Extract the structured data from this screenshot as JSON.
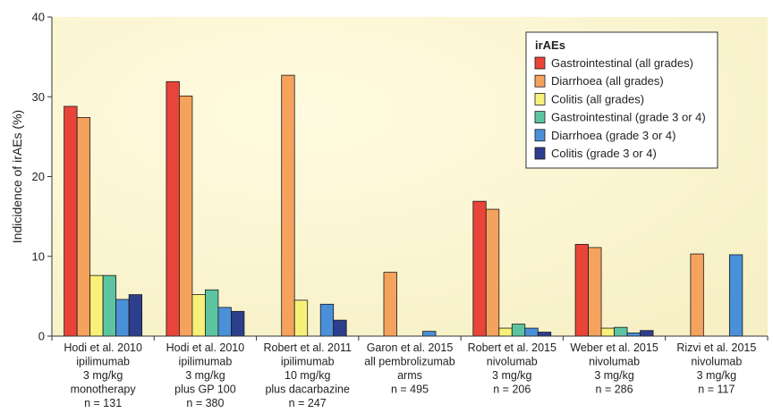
{
  "chart_data": {
    "type": "bar",
    "title": "",
    "xlabel": "",
    "ylabel": "Indicidence of irAEs (%)",
    "ylim": [
      0,
      40
    ],
    "yticks": [
      0,
      10,
      20,
      30,
      40
    ],
    "grid": false,
    "legend": {
      "title": "irAEs",
      "placement": "top-right"
    },
    "categories": [
      {
        "lines": [
          "Hodi et al. 2010",
          "ipilimumab",
          "3 mg/kg",
          "monotherapy",
          "n = 131"
        ]
      },
      {
        "lines": [
          "Hodi et al. 2010",
          "ipilimumab",
          "3 mg/kg",
          "plus GP 100",
          "n = 380"
        ]
      },
      {
        "lines": [
          "Robert et al. 2011",
          "ipilimumab",
          "10 mg/kg",
          "plus dacarbazine",
          "n = 247"
        ]
      },
      {
        "lines": [
          "Garon et al. 2015",
          "all pembrolizumab",
          "arms",
          "n = 495"
        ]
      },
      {
        "lines": [
          "Robert et al. 2015",
          "nivolumab",
          "3 mg/kg",
          "n = 206"
        ]
      },
      {
        "lines": [
          "Weber et al. 2015",
          "nivolumab",
          "3 mg/kg",
          "n = 286"
        ]
      },
      {
        "lines": [
          "Rizvi et al. 2015",
          "nivolumab",
          "3 mg/kg",
          "n = 117"
        ]
      }
    ],
    "series": [
      {
        "name": "Gastrointestinal (all grades)",
        "color": "#e8443a",
        "values": [
          28.8,
          31.9,
          null,
          null,
          16.9,
          11.5,
          null
        ]
      },
      {
        "name": "Diarrhoea (all grades)",
        "color": "#f5a25d",
        "values": [
          27.4,
          30.1,
          32.7,
          8.0,
          15.9,
          11.1,
          10.3
        ]
      },
      {
        "name": "Colitis (all grades)",
        "color": "#f7f17a",
        "values": [
          7.6,
          5.2,
          4.5,
          null,
          1.0,
          1.0,
          null
        ]
      },
      {
        "name": "Gastrointestinal (grade 3 or 4)",
        "color": "#5cc4a0",
        "values": [
          7.6,
          5.8,
          null,
          null,
          1.5,
          1.1,
          null
        ]
      },
      {
        "name": "Diarrhoea (grade 3 or 4)",
        "color": "#4a90d9",
        "values": [
          4.6,
          3.6,
          4.0,
          0.6,
          1.0,
          0.4,
          10.2
        ]
      },
      {
        "name": "Colitis (grade 3 or 4)",
        "color": "#2c3e8c",
        "values": [
          5.2,
          3.1,
          2.0,
          null,
          0.5,
          0.7,
          null
        ]
      }
    ]
  }
}
